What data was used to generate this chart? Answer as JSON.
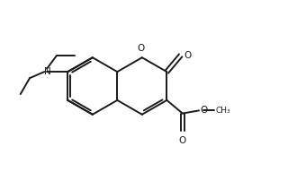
{
  "bg_color": "#ffffff",
  "bond_color": "#1a1a1a",
  "line_width": 1.4,
  "figsize": [
    3.2,
    1.92
  ],
  "dpi": 100,
  "xlim": [
    0,
    10
  ],
  "ylim": [
    0,
    6
  ]
}
